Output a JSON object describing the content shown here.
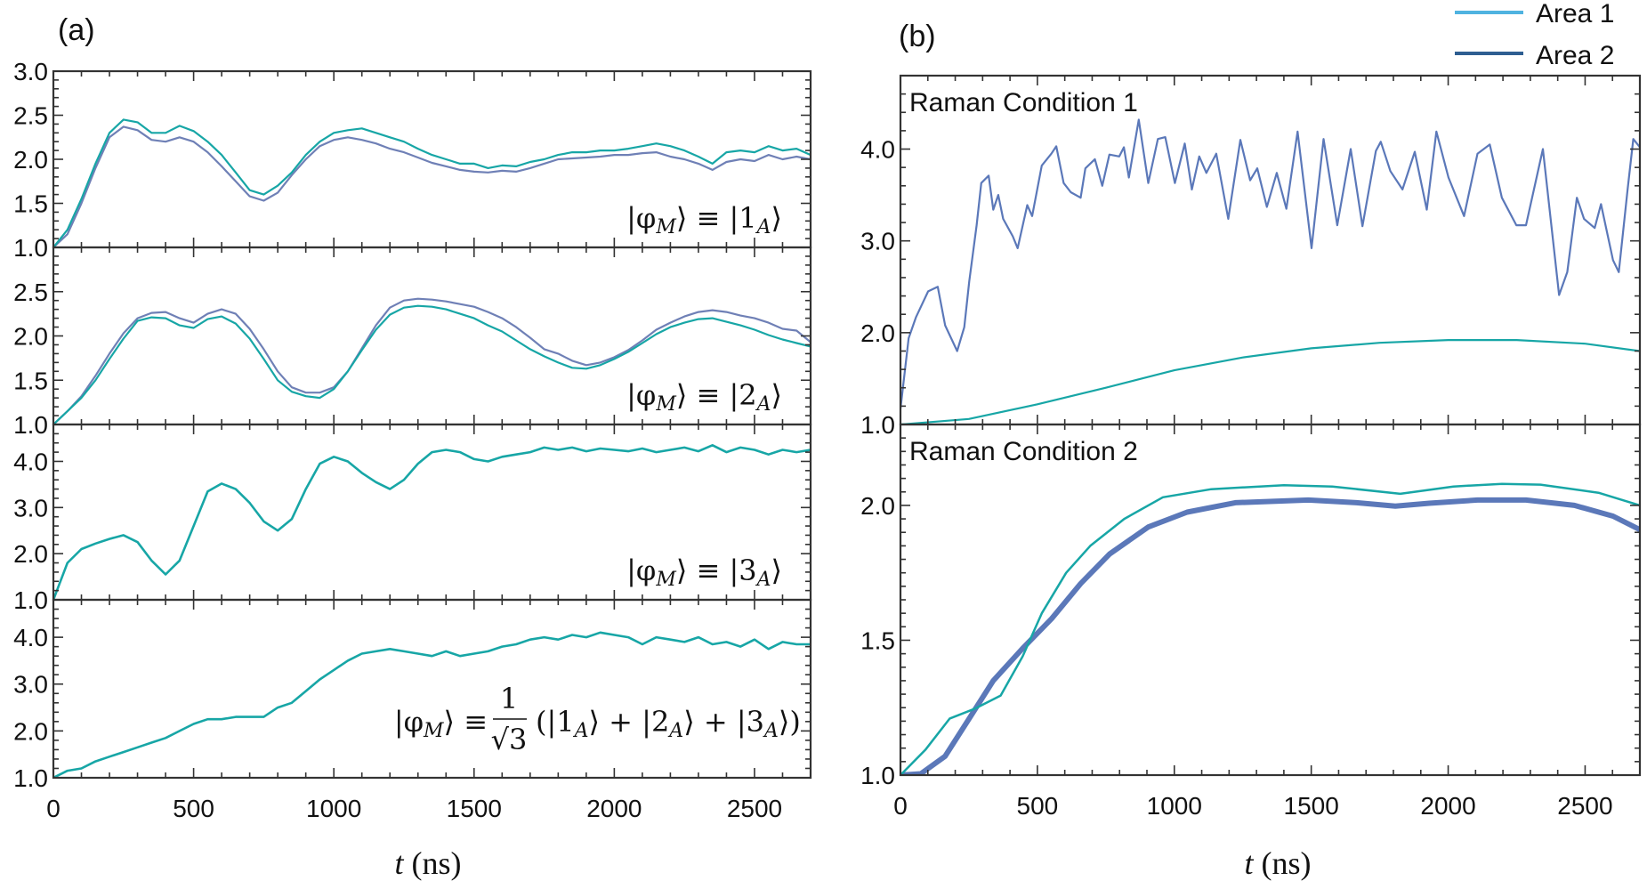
{
  "figure": {
    "panel_a_letter": "(a)",
    "panel_b_letter": "(b)",
    "xlabel": {
      "var": "t",
      "unit": "(ns)"
    },
    "legend": [
      {
        "label": "Area 1",
        "color": "#4fb3e0"
      },
      {
        "label": "Area 2",
        "color": "#2e5e91"
      }
    ],
    "colors": {
      "area1_curve": "#17a6a6",
      "area2_curve_a": "#6f80b6",
      "area2_curve_b": "#5b78b9",
      "axes": "#333333"
    }
  },
  "chart_data": [
    {
      "id": "a1",
      "type": "line",
      "panel": "(a)",
      "annotation": "|φ_M⟩ ≡ |1_A⟩",
      "xlim": [
        0,
        2700
      ],
      "ylim": [
        1.0,
        3.0
      ],
      "yticks": [
        "1.0",
        "1.5",
        "2.0",
        "2.5",
        "3.0"
      ],
      "xticks": [],
      "t": [
        0,
        50,
        100,
        150,
        200,
        250,
        300,
        350,
        400,
        450,
        500,
        550,
        600,
        650,
        700,
        750,
        800,
        850,
        900,
        950,
        1000,
        1050,
        1100,
        1150,
        1200,
        1250,
        1300,
        1350,
        1400,
        1450,
        1500,
        1550,
        1600,
        1650,
        1700,
        1750,
        1800,
        1850,
        1900,
        1950,
        2000,
        2050,
        2100,
        2150,
        2200,
        2250,
        2300,
        2350,
        2400,
        2450,
        2500,
        2550,
        2600,
        2650,
        2700
      ],
      "series": [
        {
          "name": "Area 2",
          "color": "#6f80b6",
          "y": [
            1.0,
            1.15,
            1.5,
            1.9,
            2.25,
            2.37,
            2.33,
            2.22,
            2.2,
            2.25,
            2.2,
            2.08,
            1.92,
            1.75,
            1.58,
            1.53,
            1.62,
            1.82,
            2.0,
            2.15,
            2.22,
            2.25,
            2.22,
            2.18,
            2.12,
            2.08,
            2.02,
            1.96,
            1.92,
            1.88,
            1.86,
            1.85,
            1.87,
            1.86,
            1.9,
            1.95,
            2.0,
            2.01,
            2.02,
            2.03,
            2.05,
            2.05,
            2.07,
            2.08,
            2.03,
            2.0,
            1.95,
            1.88,
            1.97,
            2.0,
            1.98,
            2.05,
            2.0,
            2.03,
            2.0
          ]
        },
        {
          "name": "Area 1",
          "color": "#17a6a6",
          "y": [
            1.0,
            1.2,
            1.55,
            1.95,
            2.3,
            2.45,
            2.42,
            2.3,
            2.3,
            2.38,
            2.32,
            2.2,
            2.05,
            1.85,
            1.65,
            1.6,
            1.7,
            1.85,
            2.05,
            2.2,
            2.3,
            2.33,
            2.35,
            2.3,
            2.25,
            2.2,
            2.12,
            2.05,
            2.0,
            1.95,
            1.95,
            1.9,
            1.93,
            1.92,
            1.97,
            2.0,
            2.05,
            2.08,
            2.08,
            2.1,
            2.1,
            2.12,
            2.15,
            2.18,
            2.15,
            2.1,
            2.03,
            1.95,
            2.08,
            2.1,
            2.08,
            2.15,
            2.1,
            2.12,
            2.05
          ]
        }
      ]
    },
    {
      "id": "a2",
      "type": "line",
      "panel": "(a)",
      "annotation": "|φ_M⟩ ≡ |2_A⟩",
      "xlim": [
        0,
        2700
      ],
      "ylim": [
        1.0,
        3.0
      ],
      "yticks": [
        "1.0",
        "1.5",
        "2.0",
        "2.5"
      ],
      "xticks": [],
      "t": [
        0,
        50,
        100,
        150,
        200,
        250,
        300,
        350,
        400,
        450,
        500,
        550,
        600,
        650,
        700,
        750,
        800,
        850,
        900,
        950,
        1000,
        1050,
        1100,
        1150,
        1200,
        1250,
        1300,
        1350,
        1400,
        1450,
        1500,
        1550,
        1600,
        1650,
        1700,
        1750,
        1800,
        1850,
        1900,
        1950,
        2000,
        2050,
        2100,
        2150,
        2200,
        2250,
        2300,
        2350,
        2400,
        2450,
        2500,
        2550,
        2600,
        2650,
        2700
      ],
      "series": [
        {
          "name": "Area 2",
          "color": "#6f80b6",
          "y": [
            1.0,
            1.15,
            1.32,
            1.55,
            1.8,
            2.03,
            2.2,
            2.26,
            2.27,
            2.2,
            2.15,
            2.25,
            2.3,
            2.25,
            2.08,
            1.85,
            1.6,
            1.42,
            1.36,
            1.36,
            1.42,
            1.6,
            1.86,
            2.12,
            2.32,
            2.4,
            2.42,
            2.41,
            2.39,
            2.36,
            2.33,
            2.27,
            2.2,
            2.1,
            1.98,
            1.85,
            1.8,
            1.72,
            1.67,
            1.7,
            1.76,
            1.84,
            1.95,
            2.07,
            2.15,
            2.22,
            2.27,
            2.29,
            2.27,
            2.23,
            2.2,
            2.15,
            2.08,
            2.06,
            1.93
          ]
        },
        {
          "name": "Area 1",
          "color": "#17a6a6",
          "y": [
            1.0,
            1.15,
            1.3,
            1.5,
            1.74,
            1.97,
            2.17,
            2.21,
            2.2,
            2.12,
            2.09,
            2.19,
            2.22,
            2.14,
            1.97,
            1.74,
            1.5,
            1.37,
            1.32,
            1.3,
            1.4,
            1.6,
            1.84,
            2.07,
            2.24,
            2.32,
            2.34,
            2.33,
            2.3,
            2.25,
            2.2,
            2.12,
            2.05,
            1.95,
            1.85,
            1.77,
            1.7,
            1.64,
            1.63,
            1.67,
            1.74,
            1.82,
            1.92,
            2.02,
            2.1,
            2.15,
            2.19,
            2.2,
            2.16,
            2.12,
            2.07,
            2.01,
            1.96,
            1.92,
            1.88
          ]
        }
      ]
    },
    {
      "id": "a3",
      "type": "line",
      "panel": "(a)",
      "annotation": "|φ_M⟩ ≡ |3_A⟩",
      "xlim": [
        0,
        2700
      ],
      "ylim": [
        1.0,
        4.8
      ],
      "yticks": [
        "1.0",
        "2.0",
        "3.0",
        "4.0"
      ],
      "xticks": [],
      "t": [
        0,
        50,
        100,
        150,
        200,
        250,
        300,
        350,
        400,
        450,
        500,
        550,
        600,
        650,
        700,
        750,
        800,
        850,
        900,
        950,
        1000,
        1050,
        1100,
        1150,
        1200,
        1250,
        1300,
        1350,
        1400,
        1450,
        1500,
        1550,
        1600,
        1650,
        1700,
        1750,
        1800,
        1850,
        1900,
        1950,
        2000,
        2050,
        2100,
        2150,
        2200,
        2250,
        2300,
        2350,
        2400,
        2450,
        2500,
        2550,
        2600,
        2650,
        2700
      ],
      "series": [
        {
          "name": "Area 1",
          "color": "#17a6a6",
          "y": [
            1.0,
            1.8,
            2.1,
            2.22,
            2.32,
            2.4,
            2.25,
            1.85,
            1.55,
            1.85,
            2.6,
            3.35,
            3.52,
            3.4,
            3.1,
            2.7,
            2.5,
            2.75,
            3.4,
            3.95,
            4.1,
            4.0,
            3.75,
            3.55,
            3.4,
            3.6,
            3.95,
            4.2,
            4.25,
            4.2,
            4.05,
            4.0,
            4.1,
            4.15,
            4.2,
            4.3,
            4.25,
            4.3,
            4.22,
            4.28,
            4.25,
            4.22,
            4.28,
            4.2,
            4.25,
            4.3,
            4.22,
            4.35,
            4.2,
            4.3,
            4.25,
            4.15,
            4.25,
            4.2,
            4.25
          ]
        }
      ]
    },
    {
      "id": "a4",
      "type": "line",
      "panel": "(a)",
      "annotation": {
        "lhs": "|φ_M⟩ ≡",
        "frac_num": "1",
        "frac_den": "√3",
        "rhs": "(|1_A⟩ + |2_A⟩ + |3_A⟩)"
      },
      "xlim": [
        0,
        2700
      ],
      "ylim": [
        1.0,
        4.8
      ],
      "yticks": [
        "1.0",
        "2.0",
        "3.0",
        "4.0"
      ],
      "xticks": [
        "0",
        "500",
        "1000",
        "1500",
        "2000",
        "2500"
      ],
      "t": [
        0,
        50,
        100,
        150,
        200,
        250,
        300,
        350,
        400,
        450,
        500,
        550,
        600,
        650,
        700,
        750,
        800,
        850,
        900,
        950,
        1000,
        1050,
        1100,
        1150,
        1200,
        1250,
        1300,
        1350,
        1400,
        1450,
        1500,
        1550,
        1600,
        1650,
        1700,
        1750,
        1800,
        1850,
        1900,
        1950,
        2000,
        2050,
        2100,
        2150,
        2200,
        2250,
        2300,
        2350,
        2400,
        2450,
        2500,
        2550,
        2600,
        2650,
        2700
      ],
      "series": [
        {
          "name": "Area 1",
          "color": "#17a6a6",
          "y": [
            1.0,
            1.15,
            1.2,
            1.35,
            1.45,
            1.55,
            1.65,
            1.75,
            1.85,
            2.0,
            2.15,
            2.25,
            2.25,
            2.3,
            2.3,
            2.3,
            2.5,
            2.6,
            2.85,
            3.1,
            3.3,
            3.5,
            3.65,
            3.7,
            3.75,
            3.7,
            3.65,
            3.6,
            3.7,
            3.6,
            3.65,
            3.7,
            3.8,
            3.85,
            3.95,
            4.0,
            3.95,
            4.05,
            4.0,
            4.1,
            4.05,
            4.0,
            3.85,
            4.0,
            3.95,
            3.9,
            4.0,
            3.85,
            3.9,
            3.8,
            3.95,
            3.75,
            3.9,
            3.85,
            3.85
          ]
        }
      ]
    },
    {
      "id": "b1",
      "type": "line",
      "panel": "(b)",
      "annotation": "Raman Condition 1",
      "xlim": [
        0,
        2700
      ],
      "ylim": [
        1.0,
        4.8
      ],
      "yticks": [
        "1.0",
        "2.0",
        "3.0",
        "4.0"
      ],
      "xticks": [],
      "series": [
        {
          "name": "Area 2",
          "color": "#5b78b9",
          "t": [
            0,
            30,
            57,
            101,
            136,
            163,
            207,
            233,
            251,
            278,
            295,
            322,
            339,
            357,
            375,
            410,
            428,
            463,
            481,
            516,
            551,
            569,
            596,
            622,
            658,
            675,
            710,
            737,
            763,
            799,
            816,
            834,
            870,
            905,
            940,
            967,
            1002,
            1038,
            1064,
            1091,
            1117,
            1153,
            1197,
            1241,
            1277,
            1303,
            1338,
            1374,
            1409,
            1450,
            1501,
            1545,
            1595,
            1644,
            1687,
            1736,
            1754,
            1789,
            1833,
            1878,
            1922,
            1957,
            2001,
            2058,
            2107,
            2152,
            2196,
            2249,
            2284,
            2346,
            2405,
            2435,
            2470,
            2496,
            2535,
            2558,
            2602,
            2623,
            2655,
            2676,
            2700
          ],
          "y": [
            1.17,
            1.94,
            2.17,
            2.45,
            2.5,
            2.08,
            1.8,
            2.06,
            2.56,
            3.17,
            3.63,
            3.71,
            3.34,
            3.5,
            3.24,
            3.05,
            2.92,
            3.39,
            3.27,
            3.82,
            3.95,
            4.03,
            3.63,
            3.53,
            3.47,
            3.79,
            3.89,
            3.6,
            3.94,
            3.92,
            4.02,
            3.69,
            4.32,
            3.63,
            4.11,
            4.13,
            3.63,
            4.06,
            3.56,
            3.92,
            3.74,
            3.95,
            3.24,
            4.1,
            3.66,
            3.79,
            3.37,
            3.74,
            3.35,
            4.19,
            2.92,
            4.11,
            3.17,
            4.0,
            3.16,
            3.98,
            4.08,
            3.76,
            3.56,
            3.97,
            3.34,
            4.19,
            3.69,
            3.27,
            3.95,
            4.05,
            3.47,
            3.17,
            3.17,
            4.0,
            2.41,
            2.66,
            3.47,
            3.24,
            3.14,
            3.4,
            2.79,
            2.66,
            3.56,
            4.11,
            4.02
          ]
        },
        {
          "name": "Area 1",
          "color": "#17a6a6",
          "t": [
            0,
            250,
            500,
            750,
            1000,
            1250,
            1500,
            1750,
            2000,
            2100,
            2250,
            2500,
            2700
          ],
          "y": [
            1.0,
            1.06,
            1.22,
            1.4,
            1.59,
            1.73,
            1.83,
            1.89,
            1.92,
            1.92,
            1.92,
            1.88,
            1.8
          ]
        }
      ]
    },
    {
      "id": "b2",
      "type": "line",
      "panel": "(b)",
      "annotation": "Raman Condition 2",
      "xlim": [
        0,
        2700
      ],
      "ylim": [
        1.0,
        2.3
      ],
      "yticks": [
        "1.0",
        "1.5",
        "2.0"
      ],
      "xticks": [
        "0",
        "500",
        "1000",
        "1500",
        "2000",
        "2500"
      ],
      "series": [
        {
          "name": "Area 2",
          "color": "#5b78b9",
          "t": [
            0,
            74,
            163,
            251,
            339,
            446,
            552,
            658,
            764,
            905,
            1047,
            1223,
            1489,
            1665,
            1807,
            1931,
            2107,
            2284,
            2461,
            2602,
            2700
          ],
          "y": [
            1.0,
            1.005,
            1.07,
            1.21,
            1.35,
            1.47,
            1.58,
            1.71,
            1.82,
            1.92,
            1.975,
            2.01,
            2.02,
            2.01,
            1.997,
            2.008,
            2.02,
            2.02,
            2.0,
            1.96,
            1.91
          ]
        },
        {
          "name": "Area 1",
          "color": "#17a6a6",
          "t": [
            0,
            92,
            180,
            269,
            366,
            446,
            516,
            605,
            693,
            817,
            958,
            1135,
            1400,
            1577,
            1825,
            2019,
            2196,
            2337,
            2549,
            2700
          ],
          "y": [
            1.0,
            1.095,
            1.21,
            1.245,
            1.295,
            1.44,
            1.6,
            1.75,
            1.85,
            1.95,
            2.03,
            2.06,
            2.075,
            2.07,
            2.043,
            2.07,
            2.08,
            2.077,
            2.047,
            2.0
          ]
        }
      ]
    }
  ]
}
